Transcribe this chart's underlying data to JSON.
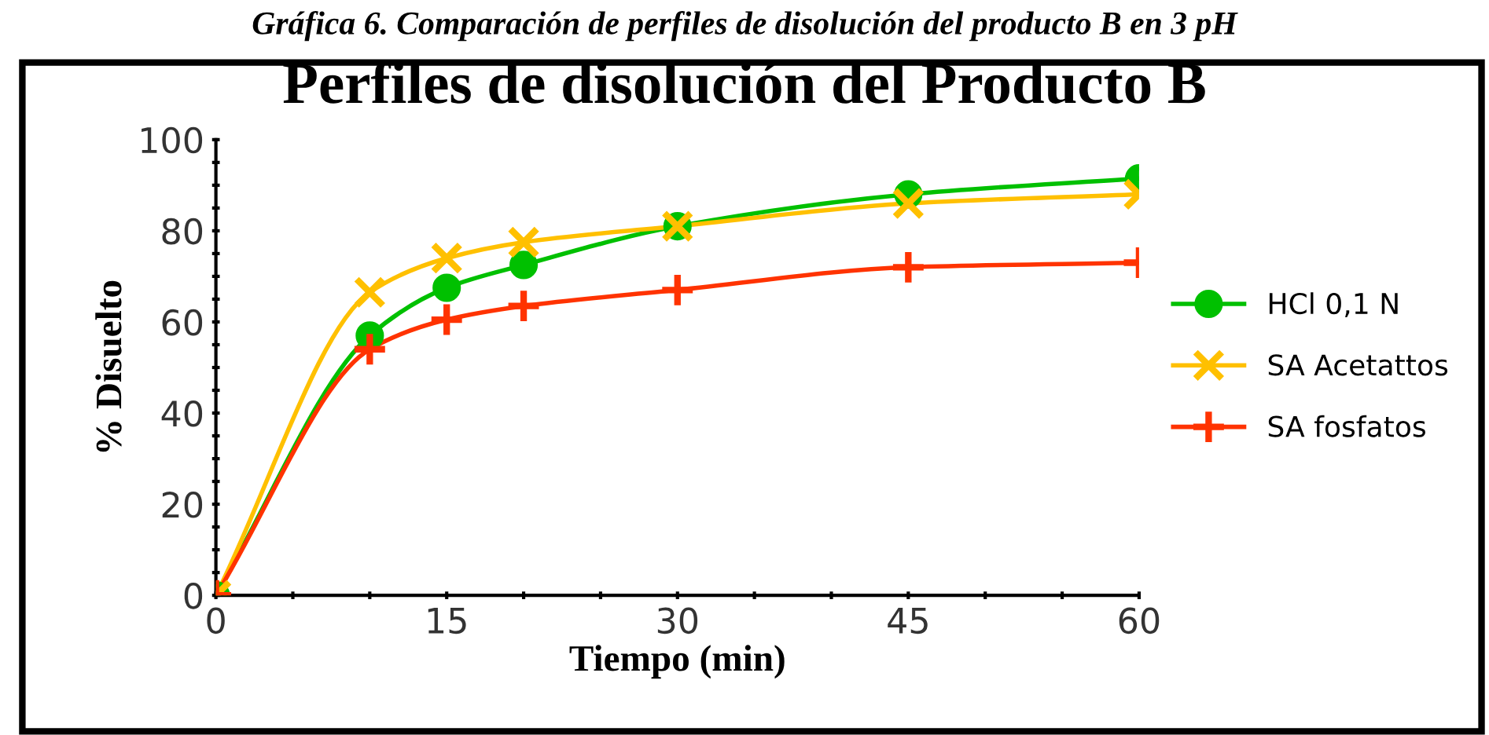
{
  "chart_data": {
    "type": "line",
    "title": "Perfiles de disolución del Producto B",
    "xlabel": "Tiempo (min)",
    "ylabel": "% Disuelto",
    "annotations": [
      "Gráfica 6. Comparación de perfiles de disolución del producto B en 3 pH"
    ],
    "x": [
      0,
      10,
      15,
      20,
      30,
      45,
      60
    ],
    "series": [
      {
        "name": "HCl 0,1 N",
        "color": "#00c000",
        "marker": "circle",
        "values": [
          0,
          57,
          67.5,
          72.5,
          81,
          88,
          91.5
        ]
      },
      {
        "name": "SA Acetattos",
        "color": "#ffc000",
        "marker": "cross",
        "values": [
          0,
          66.5,
          74,
          77.5,
          81,
          86,
          88
        ]
      },
      {
        "name": "SA fosfatos",
        "color": "#ff3300",
        "marker": "plus",
        "values": [
          0,
          54,
          60.5,
          63.5,
          67,
          72,
          73
        ]
      }
    ],
    "xlim": [
      0,
      60
    ],
    "ylim": [
      0,
      100
    ],
    "xticks": [
      0,
      {
        "value": 5,
        "label": null
      },
      {
        "value": 10,
        "label": null
      },
      15,
      {
        "value": 20,
        "label": null
      },
      {
        "value": 25,
        "label": null
      },
      30,
      {
        "value": 35,
        "label": null
      },
      {
        "value": 40,
        "label": null
      },
      45,
      {
        "value": 50,
        "label": null
      },
      {
        "value": 55,
        "label": null
      },
      60
    ],
    "yticks": [
      0,
      {
        "value": 5,
        "label": null
      },
      {
        "value": 10,
        "label": null
      },
      {
        "value": 15,
        "label": null
      },
      20,
      {
        "value": 25,
        "label": null
      },
      {
        "value": 30,
        "label": null
      },
      {
        "value": 35,
        "label": null
      },
      40,
      {
        "value": 45,
        "label": null
      },
      {
        "value": 50,
        "label": null
      },
      {
        "value": 55,
        "label": null
      },
      60,
      {
        "value": 65,
        "label": null
      },
      {
        "value": 70,
        "label": null
      },
      {
        "value": 75,
        "label": null
      },
      80,
      {
        "value": 85,
        "label": null
      },
      {
        "value": 90,
        "label": null
      },
      {
        "value": 95,
        "label": null
      },
      100
    ],
    "grid": false,
    "legend": "right",
    "line_style": "solid"
  }
}
